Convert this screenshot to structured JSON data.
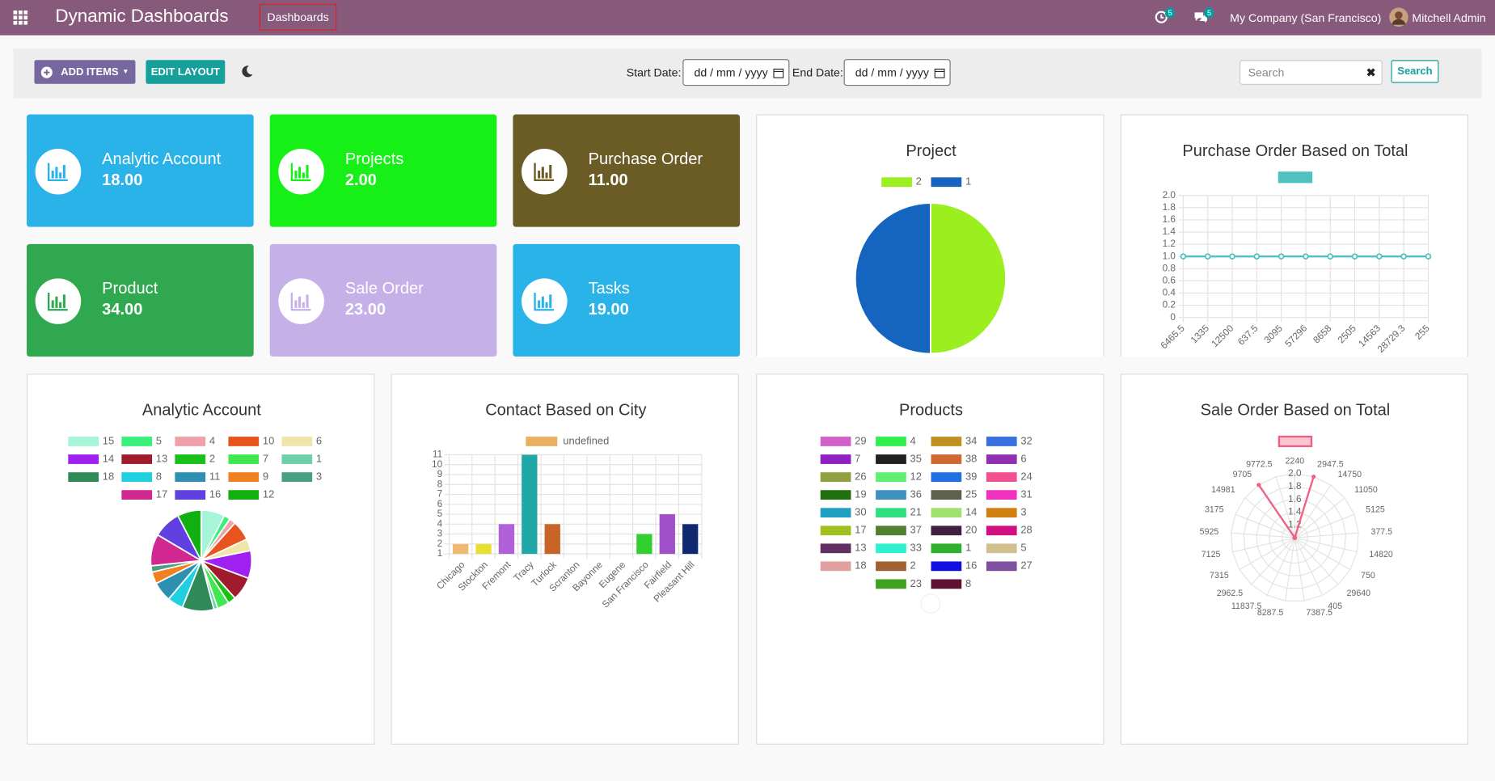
{
  "navbar": {
    "title": "Dynamic Dashboards",
    "menu": "Dashboards",
    "activity_count": 5,
    "message_count": 5,
    "company": "My Company (San Francisco)",
    "user": "Mitchell Admin"
  },
  "toolbar": {
    "add_items": "ADD ITEMS",
    "edit_layout": "EDIT LAYOUT",
    "start_label": "Start Date:",
    "end_label": "End Date:",
    "date_placeholder": "dd / mm / yyyy",
    "search_placeholder": "Search",
    "search_button": "Search"
  },
  "tiles": [
    {
      "name": "Analytic Account",
      "value": "18.00",
      "color": "#2ab3e8"
    },
    {
      "name": "Projects",
      "value": "2.00",
      "color": "#17f017"
    },
    {
      "name": "Purchase Order",
      "value": "11.00",
      "color": "#6b5b25"
    },
    {
      "name": "Product",
      "value": "34.00",
      "color": "#30a84f"
    },
    {
      "name": "Sale Order",
      "value": "23.00",
      "color": "#c5b0e8"
    },
    {
      "name": "Tasks",
      "value": "19.00",
      "color": "#2ab3e8"
    }
  ],
  "chart_data": [
    {
      "type": "pie",
      "title": "Project",
      "categories": [
        "2",
        "1"
      ],
      "values": [
        1,
        1
      ],
      "colors": [
        "#9bef1e",
        "#1565c0"
      ]
    },
    {
      "type": "line",
      "title": "Purchase Order Based on Total",
      "categories": [
        "6465.5",
        "1335",
        "12500",
        "637.5",
        "3095",
        "57296",
        "8658",
        "2505",
        "14563",
        "28729.3",
        "255"
      ],
      "series": [
        {
          "color": "#4fc1c1",
          "values": [
            1,
            1,
            1,
            1,
            1,
            1,
            1,
            1,
            1,
            1,
            1
          ]
        }
      ],
      "ylim": [
        0,
        2
      ],
      "yticks": [
        0,
        0.2,
        0.4,
        0.6,
        0.8,
        {
          "value": 1,
          "label": "1.0"
        },
        1.2,
        1.4,
        1.6,
        1.8,
        {
          "value": 2,
          "label": "2.0"
        }
      ],
      "grid": true
    },
    {
      "type": "pie",
      "title": "Analytic Account",
      "categories": [
        "15",
        "5",
        "4",
        "10",
        "6",
        "14",
        "13",
        "2",
        "7",
        "1",
        "18",
        "8",
        "11",
        "9",
        "3",
        "17",
        "16",
        "12"
      ],
      "values": [
        30,
        8,
        8,
        25,
        15,
        35,
        30,
        10,
        15,
        5,
        40,
        20,
        25,
        15,
        8,
        40,
        35,
        30
      ],
      "colors": [
        "#a6f5d6",
        "#38f07a",
        "#f0a0a8",
        "#e8541e",
        "#f0e4a8",
        "#a020f0",
        "#a01c2c",
        "#18c018",
        "#40e850",
        "#6cd0a8",
        "#2e8b57",
        "#20d0e0",
        "#2e90b0",
        "#f08020",
        "#48a080",
        "#d02890",
        "#6040e0",
        "#10b010"
      ]
    },
    {
      "type": "bar",
      "title": "Contact Based on City",
      "categories": [
        "Chicago",
        "Stockton",
        "Fremont",
        "Tracy",
        "Turlock",
        "Scranton",
        "Bayonne",
        "Eugene",
        "San Francisco",
        "Fairfield",
        "Pleasant Hill"
      ],
      "series": [
        {
          "name": "undefined",
          "color": "#e8b060",
          "values": [
            2,
            2,
            4,
            11,
            4,
            1,
            1,
            1,
            3,
            5,
            4
          ],
          "colors": [
            "#f0b870",
            "#e8e030",
            "#b060d8",
            "#20a8a8",
            "#c86428",
            "#e04070",
            "#60a0e0",
            "#a0d040",
            "#30d030",
            "#a050c8",
            "#102870"
          ]
        }
      ],
      "ylim": [
        1,
        11
      ],
      "yticks": [
        1,
        2,
        3,
        4,
        5,
        6,
        7,
        8,
        9,
        10,
        11
      ],
      "grid": true
    },
    {
      "type": "pie",
      "title": "Products",
      "categories": [
        "29",
        "4",
        "34",
        "32",
        "7",
        "35",
        "38",
        "6",
        "26",
        "12",
        "39",
        "24",
        "19",
        "36",
        "25",
        "31",
        "30",
        "21",
        "14",
        "3",
        "17",
        "37",
        "20",
        "28",
        "13",
        "33",
        "1",
        "5",
        "18",
        "2",
        "16",
        "27",
        "23",
        "8"
      ],
      "values": [
        0,
        0,
        0,
        0,
        0,
        0,
        0,
        0,
        0,
        0,
        0,
        0,
        0,
        0,
        0,
        0,
        0,
        0,
        0,
        0,
        0,
        0,
        0,
        0,
        0,
        0,
        0,
        0,
        0,
        0,
        0,
        0,
        0,
        0
      ],
      "colors": [
        "#d060c8",
        "#30f050",
        "#c09020",
        "#3870e0",
        "#9020c0",
        "#202020",
        "#d06830",
        "#9030b0",
        "#90a040",
        "#60f070",
        "#2070e0",
        "#f05090",
        "#207010",
        "#4090c0",
        "#606050",
        "#f030c0",
        "#20a0c0",
        "#30e080",
        "#a0e070",
        "#d08010",
        "#a0c020",
        "#508030",
        "#402040",
        "#d01080",
        "#603060",
        "#30f0d0",
        "#30b030",
        "#d0c090",
        "#e0a0a0",
        "#a06030",
        "#1010e0",
        "#8050a0",
        "#40a020",
        "#601030"
      ]
    },
    {
      "type": "radar",
      "title": "Sale Order Based on Total",
      "categories": [
        "2240",
        "2947.5",
        "14750",
        "11050",
        "5125",
        "377.5",
        "14820",
        "750",
        "29640",
        "405",
        "7387.5",
        "8287.5",
        "11837.5",
        "2962.5",
        "7315",
        "7125",
        "5925",
        "3175",
        "14981",
        "9705",
        "9772.5"
      ],
      "series": [
        {
          "color": "#f06080",
          "values": [
            1,
            2,
            1,
            1,
            1,
            1,
            1,
            1,
            1,
            1,
            1,
            1,
            1,
            1,
            1,
            1,
            1,
            1,
            1,
            2,
            1
          ]
        }
      ],
      "rlim": [
        1,
        2
      ],
      "rticks": [
        1.2,
        1.4,
        1.6,
        1.8,
        {
          "value": 2,
          "label": "2.0"
        }
      ]
    }
  ]
}
